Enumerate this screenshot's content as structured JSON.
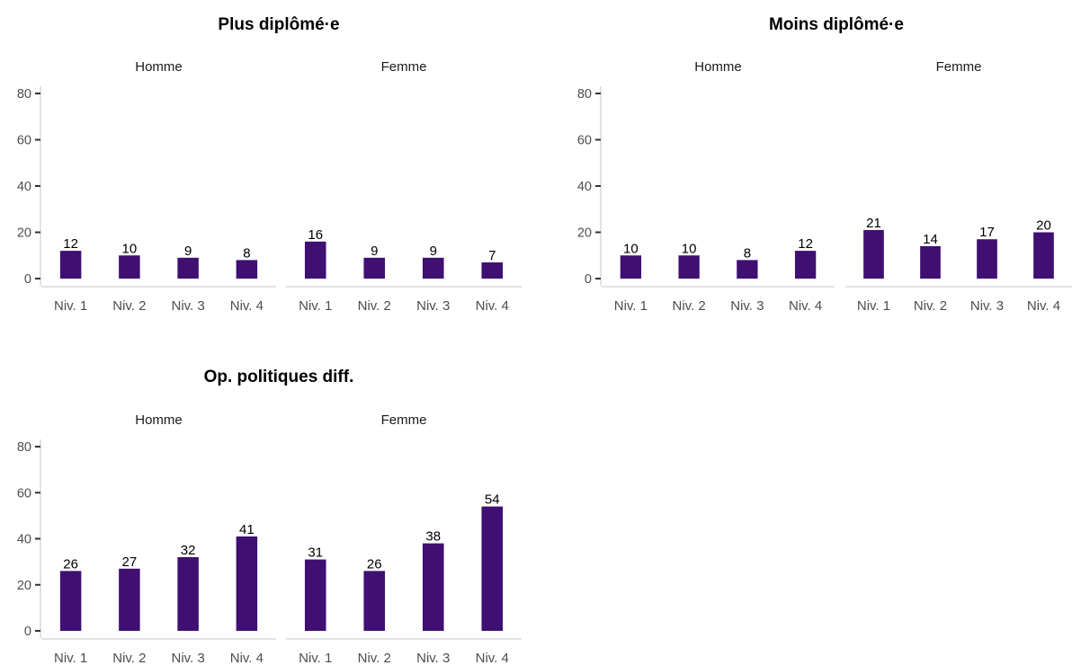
{
  "chart_data": [
    {
      "type": "bar",
      "title": "Plus diplômé·e",
      "categories": [
        "Niv. 1",
        "Niv. 2",
        "Niv. 3",
        "Niv. 4"
      ],
      "facets": [
        {
          "label": "Homme",
          "values": [
            12,
            10,
            9,
            8
          ]
        },
        {
          "label": "Femme",
          "values": [
            16,
            9,
            9,
            7
          ]
        }
      ],
      "yticks": [
        0,
        20,
        40,
        60,
        80
      ],
      "ylim": [
        0,
        82
      ],
      "grid": false
    },
    {
      "type": "bar",
      "title": "Moins diplômé·e",
      "categories": [
        "Niv. 1",
        "Niv. 2",
        "Niv. 3",
        "Niv. 4"
      ],
      "facets": [
        {
          "label": "Homme",
          "values": [
            10,
            10,
            8,
            12
          ]
        },
        {
          "label": "Femme",
          "values": [
            21,
            14,
            17,
            20
          ]
        }
      ],
      "yticks": [
        0,
        20,
        40,
        60,
        80
      ],
      "ylim": [
        0,
        82
      ],
      "grid": false
    },
    {
      "type": "bar",
      "title": "Op. politiques diff.",
      "categories": [
        "Niv. 1",
        "Niv. 2",
        "Niv. 3",
        "Niv. 4"
      ],
      "facets": [
        {
          "label": "Homme",
          "values": [
            26,
            27,
            32,
            41
          ]
        },
        {
          "label": "Femme",
          "values": [
            31,
            26,
            38,
            54
          ]
        }
      ],
      "yticks": [
        0,
        20,
        40,
        60,
        80
      ],
      "ylim": [
        0,
        82
      ],
      "grid": false
    }
  ],
  "colors": {
    "bar": "#3f0f72",
    "axis": "#d9d9d9",
    "tick": "#333333"
  }
}
